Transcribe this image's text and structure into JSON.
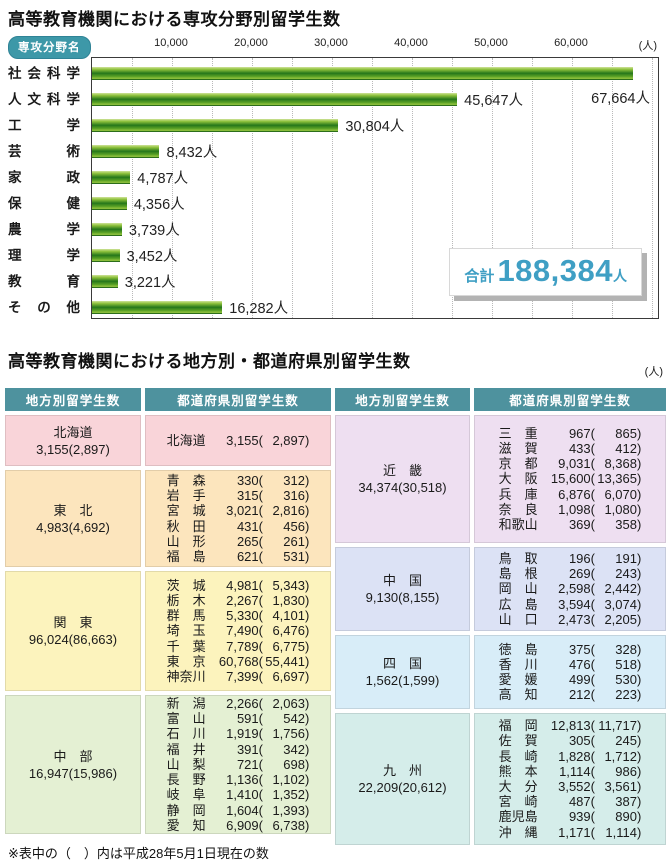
{
  "chart": {
    "title": "高等教育機関における専攻分野別留学生数",
    "badge": "専攻分野名",
    "unit": "(人)",
    "tick_labels": [
      "10,000",
      "20,000",
      "30,000",
      "40,000",
      "50,000",
      "60,000"
    ],
    "total": {
      "label": "合計",
      "value": "188,384",
      "unit": "人"
    },
    "colors": {
      "badge": "#3d98a8",
      "bar_pale": "#cfe39a",
      "bar_light": "#8fc23c",
      "bar_mid": "#5ba226",
      "bar_dark": "#26771b",
      "total_text": "#3f9fc4"
    }
  },
  "chart_data": {
    "type": "bar",
    "orientation": "horizontal",
    "title": "高等教育機関における専攻分野別留学生数",
    "categories": [
      "社会科学",
      "人文科学",
      "工学",
      "芸術",
      "家政",
      "保健",
      "農学",
      "理学",
      "教育",
      "その他"
    ],
    "values": [
      67664,
      45647,
      30804,
      8432,
      4787,
      4356,
      3739,
      3452,
      3221,
      16282
    ],
    "value_labels": [
      "67,664人",
      "45,647人",
      "30,804人",
      "8,432人",
      "4,787人",
      "4,356人",
      "3,739人",
      "3,452人",
      "3,221人",
      "16,282人"
    ],
    "xlabel": "(人)",
    "xlim": [
      0,
      71000
    ],
    "xticks": [
      10000,
      20000,
      30000,
      40000,
      50000,
      60000
    ],
    "grid": "dotted-vertical-every-5000",
    "total": 188384
  },
  "table": {
    "title": "高等教育機関における地方別・都道府県別留学生数",
    "unit": "(人)",
    "headers": [
      "地方別留学生数",
      "都道府県別留学生数",
      "地方別留学生数",
      "都道府県別留学生数"
    ],
    "header_bg": "#4e929e",
    "note": "※表中の（　）内は平成28年5月1日現在の数",
    "columns": [
      {
        "bands": [
          {
            "region": "北海道",
            "value": "3,155",
            "prev": "2,897",
            "color": "#f9d4d9",
            "prefs": [
              {
                "name": "北海道",
                "value": "3,155",
                "prev": "2,897"
              }
            ]
          },
          {
            "region": "東　北",
            "value": "4,983",
            "prev": "4,692",
            "color": "#fce5bd",
            "prefs": [
              {
                "name": "青　森",
                "value": "330",
                "prev": "312"
              },
              {
                "name": "岩　手",
                "value": "315",
                "prev": "316"
              },
              {
                "name": "宮　城",
                "value": "3,021",
                "prev": "2,816"
              },
              {
                "name": "秋　田",
                "value": "431",
                "prev": "456"
              },
              {
                "name": "山　形",
                "value": "265",
                "prev": "261"
              },
              {
                "name": "福　島",
                "value": "621",
                "prev": "531"
              }
            ]
          },
          {
            "region": "関　東",
            "value": "96,024",
            "prev": "86,663",
            "color": "#fcf3bd",
            "prefs": [
              {
                "name": "茨　城",
                "value": "4,981",
                "prev": "5,343"
              },
              {
                "name": "栃　木",
                "value": "2,267",
                "prev": "1,830"
              },
              {
                "name": "群　馬",
                "value": "5,330",
                "prev": "4,101"
              },
              {
                "name": "埼　玉",
                "value": "7,490",
                "prev": "6,476"
              },
              {
                "name": "千　葉",
                "value": "7,789",
                "prev": "6,775"
              },
              {
                "name": "東　京",
                "value": "60,768",
                "prev": "55,441"
              },
              {
                "name": "神奈川",
                "value": "7,399",
                "prev": "6,697"
              }
            ]
          },
          {
            "region": "中　部",
            "value": "16,947",
            "prev": "15,986",
            "color": "#e4f0d3",
            "prefs": [
              {
                "name": "新　潟",
                "value": "2,266",
                "prev": "2,063"
              },
              {
                "name": "富　山",
                "value": "591",
                "prev": "542"
              },
              {
                "name": "石　川",
                "value": "1,919",
                "prev": "1,756"
              },
              {
                "name": "福　井",
                "value": "391",
                "prev": "342"
              },
              {
                "name": "山　梨",
                "value": "721",
                "prev": "698"
              },
              {
                "name": "長　野",
                "value": "1,136",
                "prev": "1,102"
              },
              {
                "name": "岐　阜",
                "value": "1,410",
                "prev": "1,352"
              },
              {
                "name": "静　岡",
                "value": "1,604",
                "prev": "1,393"
              },
              {
                "name": "愛　知",
                "value": "6,909",
                "prev": "6,738"
              }
            ]
          }
        ]
      },
      {
        "bands": [
          {
            "region": "近　畿",
            "value": "34,374",
            "prev": "30,518",
            "color": "#eedff1",
            "prefs": [
              {
                "name": "三　重",
                "value": "967",
                "prev": "865"
              },
              {
                "name": "滋　賀",
                "value": "433",
                "prev": "412"
              },
              {
                "name": "京　都",
                "value": "9,031",
                "prev": "8,368"
              },
              {
                "name": "大　阪",
                "value": "15,600",
                "prev": "13,365"
              },
              {
                "name": "兵　庫",
                "value": "6,876",
                "prev": "6,070"
              },
              {
                "name": "奈　良",
                "value": "1,098",
                "prev": "1,080"
              },
              {
                "name": "和歌山",
                "value": "369",
                "prev": "358"
              }
            ]
          },
          {
            "region": "中　国",
            "value": "9,130",
            "prev": "8,155",
            "color": "#dce2f5",
            "prefs": [
              {
                "name": "鳥　取",
                "value": "196",
                "prev": "191"
              },
              {
                "name": "島　根",
                "value": "269",
                "prev": "243"
              },
              {
                "name": "岡　山",
                "value": "2,598",
                "prev": "2,442"
              },
              {
                "name": "広　島",
                "value": "3,594",
                "prev": "3,074"
              },
              {
                "name": "山　口",
                "value": "2,473",
                "prev": "2,205"
              }
            ]
          },
          {
            "region": "四　国",
            "value": "1,562",
            "prev": "1,599",
            "color": "#d8edf8",
            "prefs": [
              {
                "name": "徳　島",
                "value": "375",
                "prev": "328"
              },
              {
                "name": "香　川",
                "value": "476",
                "prev": "518"
              },
              {
                "name": "愛　媛",
                "value": "499",
                "prev": "530"
              },
              {
                "name": "高　知",
                "value": "212",
                "prev": "223"
              }
            ]
          },
          {
            "region": "九　州",
            "value": "22,209",
            "prev": "20,612",
            "color": "#d5edea",
            "prefs": [
              {
                "name": "福　岡",
                "value": "12,813",
                "prev": "11,717"
              },
              {
                "name": "佐　賀",
                "value": "305",
                "prev": "245"
              },
              {
                "name": "長　崎",
                "value": "1,828",
                "prev": "1,712"
              },
              {
                "name": "熊　本",
                "value": "1,114",
                "prev": "986"
              },
              {
                "name": "大　分",
                "value": "3,552",
                "prev": "3,561"
              },
              {
                "name": "宮　崎",
                "value": "487",
                "prev": "387"
              },
              {
                "name": "鹿児島",
                "value": "939",
                "prev": "890"
              },
              {
                "name": "沖　縄",
                "value": "1,171",
                "prev": "1,114"
              }
            ]
          }
        ]
      }
    ]
  }
}
